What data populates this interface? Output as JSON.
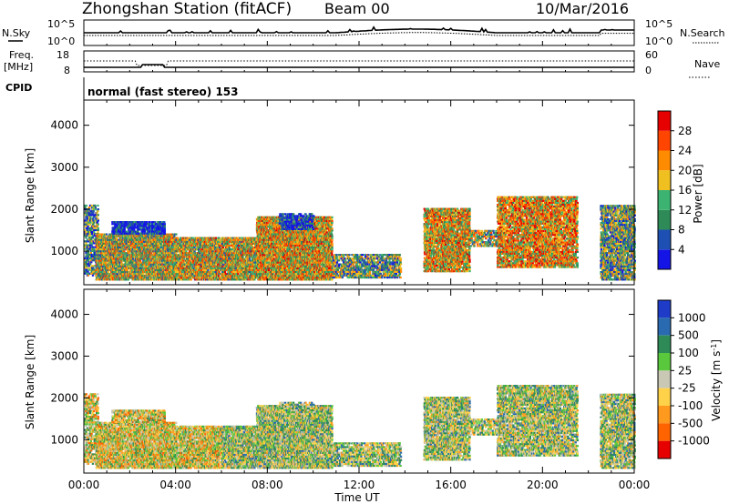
{
  "header": {
    "station": "Zhongshan Station (fitACF)",
    "beam": "Beam 00",
    "date": "10/Mar/2016"
  },
  "left_labels": {
    "nsky": "N.Sky",
    "nsky_hi": "10^5",
    "nsky_lo": "10^0",
    "freq": "Freq.",
    "freq_unit": "[MHz]",
    "freq_hi": "18",
    "freq_lo": "8",
    "cpid": "CPID"
  },
  "right_labels": {
    "nsearch": "N.Search",
    "nsearch_hi": "10^5",
    "nsearch_lo": "10^0",
    "nave": "Nave",
    "nave_hi": "60",
    "nave_lo": "0"
  },
  "cpid_text": "normal (fast stereo) 153",
  "chart_data": [
    {
      "type": "heatmap",
      "name": "power",
      "ylabel": "Slant Range [km]",
      "xlabel": "",
      "xticks": [
        "00:00",
        "04:00",
        "08:00",
        "12:00",
        "16:00",
        "20:00",
        "00:00"
      ],
      "yticks": [
        1000,
        2000,
        3000,
        4000
      ],
      "ylim": [
        200,
        4600
      ],
      "colorbar_label": "Power [dB]",
      "colorbar_ticks": [
        4,
        8,
        12,
        16,
        20,
        24,
        28
      ],
      "colorbar_colors": [
        "#1414e6",
        "#1e50b4",
        "#2e8b57",
        "#3cb371",
        "#f0c020",
        "#ff8c00",
        "#ff4500",
        "#e60000"
      ]
    },
    {
      "type": "heatmap",
      "name": "velocity",
      "ylabel": "Slant Range [km]",
      "xlabel": "Time UT",
      "xticks": [
        "00:00",
        "04:00",
        "08:00",
        "12:00",
        "16:00",
        "20:00",
        "00:00"
      ],
      "yticks": [
        1000,
        2000,
        3000,
        4000
      ],
      "ylim": [
        200,
        4600
      ],
      "colorbar_label": "Velocity [m s-1]",
      "colorbar_ticks": [
        "1000",
        "500",
        "100",
        "25",
        "-25",
        "-100",
        "-500",
        "-1000"
      ],
      "colorbar_colors": [
        "#1e3cc8",
        "#2a6ab0",
        "#2e8b57",
        "#5ac83c",
        "#c8c8b4",
        "#ffd24a",
        "#ff9a1e",
        "#ff6400",
        "#e60000"
      ]
    }
  ]
}
